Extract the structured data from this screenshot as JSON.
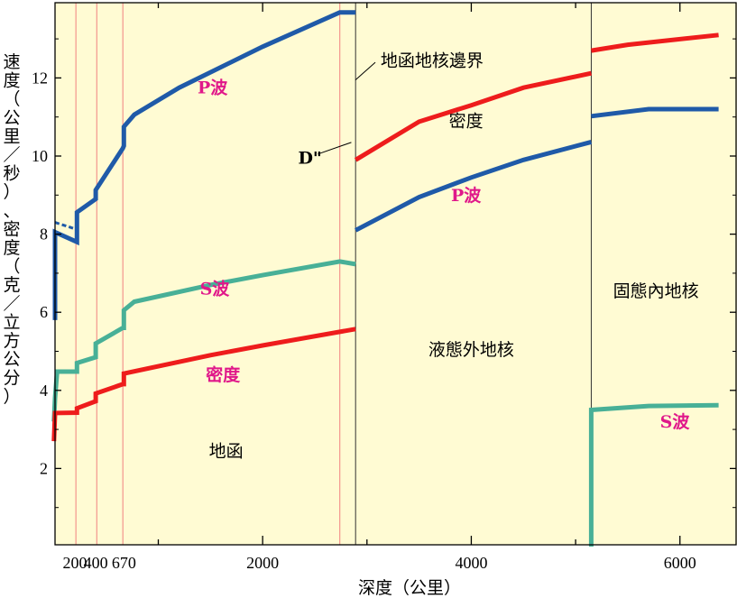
{
  "chart_data": {
    "type": "line",
    "xlabel": "深度（公里）",
    "ylabel": "速度（公里／秒）、密度（克／立方公分）",
    "xlim": [
      0,
      6371
    ],
    "ylim": [
      0,
      13.8
    ],
    "x_ticks": [
      {
        "value": 200,
        "label": "200"
      },
      {
        "value": 400,
        "label": "400"
      },
      {
        "value": 670,
        "label": "670"
      },
      {
        "value": 2000,
        "label": "2000"
      },
      {
        "value": 4000,
        "label": "4000"
      },
      {
        "value": 6000,
        "label": "6000"
      }
    ],
    "y_ticks": [
      {
        "value": 2,
        "label": "2"
      },
      {
        "value": 4,
        "label": "4"
      },
      {
        "value": 6,
        "label": "6"
      },
      {
        "value": 8,
        "label": "8"
      },
      {
        "value": 10,
        "label": "10"
      },
      {
        "value": 12,
        "label": "12"
      }
    ],
    "region_labels": [
      {
        "text": "地函",
        "x": 1650,
        "y": 2.3
      },
      {
        "text": "液態外地核",
        "x": 4000,
        "y": 4.9
      },
      {
        "text": "固態內地核",
        "x": 5770,
        "y": 6.4
      }
    ],
    "annotations": [
      {
        "text": "地函地核邊界",
        "x": 3130,
        "y": 12.3,
        "leader": [
          [
            2890,
            11.95
          ],
          [
            3080,
            12.4
          ]
        ]
      },
      {
        "text": "D\"",
        "x": 2340,
        "y": 9.8,
        "leader": [
          [
            2530,
            10.05
          ],
          [
            2850,
            10.35
          ]
        ]
      }
    ],
    "boundaries": {
      "thin_red": [
        210,
        410,
        660,
        2740
      ],
      "black": [
        2891,
        5150
      ]
    },
    "series": [
      {
        "name": "P波",
        "color": "#1f5aa8",
        "label_pos": [
          1520,
          11.6
        ],
        "segments": [
          [
            [
              10,
              5.8
            ],
            [
              10,
              8.05
            ],
            [
              220,
              7.8
            ],
            [
              220,
              8.56
            ],
            [
              400,
              8.9
            ],
            [
              400,
              9.13
            ],
            [
              660,
              10.2
            ],
            [
              670,
              10.26
            ],
            [
              670,
              10.75
            ],
            [
              770,
              11.06
            ],
            [
              1200,
              11.75
            ],
            [
              2000,
              12.8
            ],
            [
              2740,
              13.68
            ],
            [
              2891,
              13.68
            ]
          ],
          [
            [
              2891,
              8.1
            ],
            [
              3500,
              8.95
            ],
            [
              4000,
              9.45
            ],
            [
              4500,
              9.9
            ],
            [
              5150,
              10.36
            ]
          ],
          [
            [
              5150,
              11.02
            ],
            [
              5700,
              11.2
            ],
            [
              6371,
              11.2
            ]
          ]
        ]
      },
      {
        "name": "P波 ",
        "color": "#1f5aa8",
        "dashed": true,
        "label_pos": null,
        "segments": [
          [
            [
              10,
              8.3
            ],
            [
              220,
              8.12
            ]
          ]
        ]
      },
      {
        "name": "S波",
        "color": "#48b097",
        "label_pos": [
          1540,
          6.45
        ],
        "segments": [
          [
            [
              0,
              3.2
            ],
            [
              10,
              3.8
            ],
            [
              30,
              4.48
            ],
            [
              220,
              4.48
            ],
            [
              220,
              4.7
            ],
            [
              400,
              4.85
            ],
            [
              400,
              5.2
            ],
            [
              660,
              5.6
            ],
            [
              670,
              5.6
            ],
            [
              670,
              6.05
            ],
            [
              770,
              6.27
            ],
            [
              1500,
              6.7
            ],
            [
              2000,
              6.95
            ],
            [
              2740,
              7.3
            ],
            [
              2891,
              7.23
            ]
          ],
          [
            [
              5150,
              0
            ],
            [
              5150,
              3.5
            ],
            [
              5700,
              3.6
            ],
            [
              6371,
              3.62
            ]
          ]
        ]
      },
      {
        "name": "密度",
        "color": "#ee1c1c",
        "label_pos": [
          1620,
          4.25
        ],
        "segments": [
          [
            [
              0,
              2.7
            ],
            [
              10,
              3.42
            ],
            [
              220,
              3.43
            ],
            [
              220,
              3.54
            ],
            [
              400,
              3.72
            ],
            [
              400,
              3.92
            ],
            [
              660,
              4.16
            ],
            [
              670,
              4.16
            ],
            [
              670,
              4.43
            ],
            [
              1500,
              4.9
            ],
            [
              2000,
              5.15
            ],
            [
              2891,
              5.57
            ]
          ],
          [
            [
              2891,
              9.9
            ],
            [
              3500,
              10.88
            ],
            [
              4000,
              11.3
            ],
            [
              4500,
              11.75
            ],
            [
              5150,
              12.12
            ]
          ],
          [
            [
              5150,
              12.7
            ],
            [
              5500,
              12.85
            ],
            [
              6371,
              13.1
            ]
          ]
        ]
      }
    ],
    "inline_labels": [
      {
        "series_index": 3,
        "text": "密度",
        "x": 3950,
        "y": 10.75
      },
      {
        "series_index": 0,
        "text": "P波",
        "x": 3950,
        "y": 8.85
      },
      {
        "series_index": 2,
        "text": "S波",
        "x": 5950,
        "y": 3.05
      }
    ],
    "background": "#fffbd3"
  }
}
